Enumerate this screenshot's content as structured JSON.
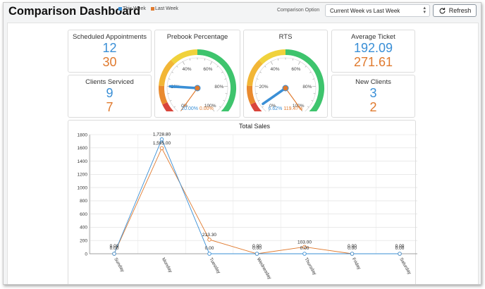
{
  "header": {
    "title": "Comparison Dashboard",
    "legend_this": "This Week",
    "legend_last": "Last Week",
    "option_label": "Comparison Option",
    "option_value": "Current Week vs Last Week",
    "refresh_label": "Refresh"
  },
  "colors": {
    "this_week": "#3a8fd6",
    "last_week": "#e07a2e"
  },
  "cards": {
    "scheduled": {
      "label": "Scheduled Appointments",
      "this": "12",
      "last": "30"
    },
    "clients": {
      "label": "Clients Serviced",
      "this": "9",
      "last": "7"
    },
    "ticket": {
      "label": "Average Ticket",
      "this": "192.09",
      "last": "271.61"
    },
    "newclients": {
      "label": "New Clients",
      "this": "3",
      "last": "2"
    }
  },
  "gauges": {
    "prebook": {
      "title": "Prebook Percentage",
      "this_pct": 20.0,
      "last_pct": 0.0,
      "this_text": "20.00%",
      "last_text": "0.00%"
    },
    "rts": {
      "title": "RTS",
      "this_pct": 6.62,
      "last_pct": 119.47,
      "this_text": "6.62%",
      "last_text": "119.47%"
    },
    "ticks": [
      "0%",
      "20%",
      "40%",
      "60%",
      "80%",
      "100%"
    ]
  },
  "chart_data": {
    "type": "line",
    "title": "Total Sales",
    "categories": [
      "Sunday",
      "Monday",
      "Tuesday",
      "Wednesday",
      "Thursday",
      "Friday",
      "Saturday"
    ],
    "ylim": [
      0,
      1800
    ],
    "yticks": [
      0,
      200,
      400,
      600,
      800,
      1000,
      1200,
      1400,
      1600,
      1800
    ],
    "series": [
      {
        "name": "This Week",
        "values": [
          0,
          1728.8,
          0,
          0,
          0,
          0,
          0
        ],
        "labels": [
          "0.00",
          "1,728.80",
          "0.00",
          "0.00",
          "0.00",
          "0.00",
          "0.00"
        ]
      },
      {
        "name": "Last Week",
        "values": [
          0,
          1595.0,
          213.3,
          0,
          103.0,
          0,
          0
        ],
        "labels": [
          "0.00",
          "1,595.00",
          "213.30",
          "0.00",
          "103.00",
          "0.00",
          "0.00"
        ]
      }
    ]
  }
}
